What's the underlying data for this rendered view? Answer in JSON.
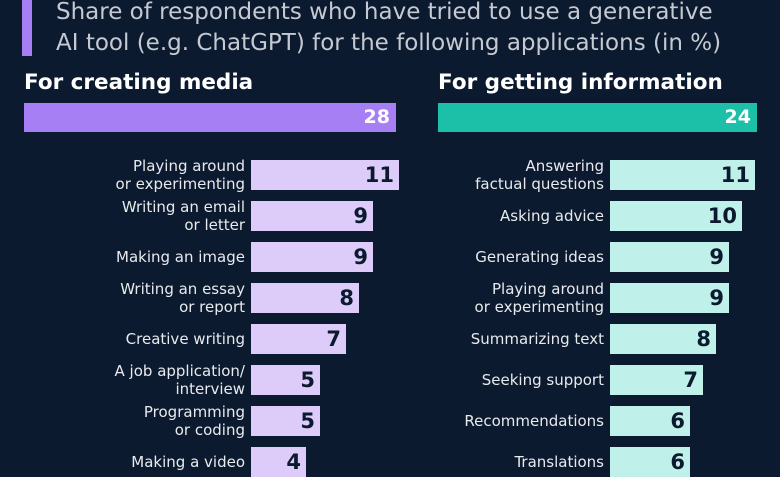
{
  "subtitle": {
    "line1": "Share of respondents who have tried to use a generative",
    "line2": "AI tool (e.g. ChatGPT) for the following applications (in %)"
  },
  "chart_data": [
    {
      "type": "bar",
      "title": "For creating media",
      "total": {
        "value": 28,
        "label": "28"
      },
      "total_color": "#a67ff5",
      "bar_color": "#ddccfa",
      "scale_max": 28,
      "rows": [
        {
          "label_lines": [
            "Playing around",
            "or experimenting"
          ],
          "value": 11,
          "value_label": "11"
        },
        {
          "label_lines": [
            "Writing an email",
            "or letter"
          ],
          "value": 9,
          "value_label": "9"
        },
        {
          "label_lines": [
            "Making an image"
          ],
          "value": 9,
          "value_label": "9"
        },
        {
          "label_lines": [
            "Writing an essay",
            "or report"
          ],
          "value": 8,
          "value_label": "8"
        },
        {
          "label_lines": [
            "Creative writing"
          ],
          "value": 7,
          "value_label": "7"
        },
        {
          "label_lines": [
            "A job application/",
            "interview"
          ],
          "value": 5,
          "value_label": "5"
        },
        {
          "label_lines": [
            "Programming",
            "or coding"
          ],
          "value": 5,
          "value_label": "5"
        },
        {
          "label_lines": [
            "Making a video"
          ],
          "value": 4,
          "value_label": "4"
        }
      ]
    },
    {
      "type": "bar",
      "title": "For getting information",
      "total": {
        "value": 24,
        "label": "24"
      },
      "total_color": "#1cc0a8",
      "bar_color": "#bff0ea",
      "scale_max": 24,
      "rows": [
        {
          "label_lines": [
            "Answering",
            "factual questions"
          ],
          "value": 11,
          "value_label": "11"
        },
        {
          "label_lines": [
            "Asking advice"
          ],
          "value": 10,
          "value_label": "10"
        },
        {
          "label_lines": [
            "Generating ideas"
          ],
          "value": 9,
          "value_label": "9"
        },
        {
          "label_lines": [
            "Playing around",
            "or experimenting"
          ],
          "value": 9,
          "value_label": "9"
        },
        {
          "label_lines": [
            "Summarizing text"
          ],
          "value": 8,
          "value_label": "8"
        },
        {
          "label_lines": [
            "Seeking support"
          ],
          "value": 7,
          "value_label": "7"
        },
        {
          "label_lines": [
            "Recommendations"
          ],
          "value": 6,
          "value_label": "6"
        },
        {
          "label_lines": [
            "Translations"
          ],
          "value": 6,
          "value_label": "6"
        }
      ]
    }
  ]
}
